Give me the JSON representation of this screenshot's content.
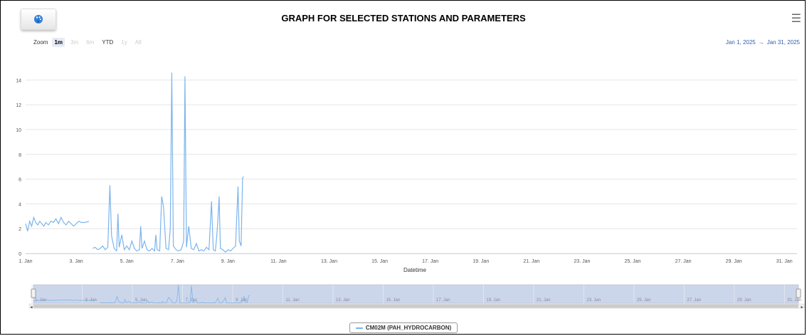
{
  "header": {
    "title": "GRAPH FOR SELECTED STATIONS AND PARAMETERS",
    "menu_icon": "hamburger-menu-icon",
    "palette_icon": "palette-icon"
  },
  "range_selector": {
    "label": "Zoom",
    "buttons": [
      {
        "label": "1m",
        "state": "active"
      },
      {
        "label": "3m",
        "state": "disabled"
      },
      {
        "label": "6m",
        "state": "disabled"
      },
      {
        "label": "YTD",
        "state": "normal"
      },
      {
        "label": "1y",
        "state": "disabled"
      },
      {
        "label": "All",
        "state": "disabled"
      }
    ],
    "from": "Jan 1, 2025",
    "to": "Jan 31, 2025"
  },
  "colors": {
    "series": "#7cb5ec",
    "navigator_fill": "#ccd6eb",
    "grid": "#e6e6e6"
  },
  "chart_data": {
    "type": "line",
    "xlabel": "Datetime",
    "ylabel": "",
    "ylim": [
      0,
      15
    ],
    "yticks": [
      0,
      2,
      4,
      6,
      8,
      10,
      12,
      14
    ],
    "xlim": [
      1,
      31.5
    ],
    "xticks": [
      {
        "value": 1,
        "label": "1. Jan"
      },
      {
        "value": 3,
        "label": "3. Jan"
      },
      {
        "value": 5,
        "label": "5. Jan"
      },
      {
        "value": 7,
        "label": "7. Jan"
      },
      {
        "value": 9,
        "label": "9. Jan"
      },
      {
        "value": 11,
        "label": "11. Jan"
      },
      {
        "value": 13,
        "label": "13. Jan"
      },
      {
        "value": 15,
        "label": "15. Jan"
      },
      {
        "value": 17,
        "label": "17. Jan"
      },
      {
        "value": 19,
        "label": "19. Jan"
      },
      {
        "value": 21,
        "label": "21. Jan"
      },
      {
        "value": 23,
        "label": "23. Jan"
      },
      {
        "value": 25,
        "label": "25. Jan"
      },
      {
        "value": 27,
        "label": "27. Jan"
      },
      {
        "value": 29,
        "label": "29. Jan"
      },
      {
        "value": 31,
        "label": "31. Jan"
      }
    ],
    "grid": true,
    "legend": "bottom-center",
    "series": [
      {
        "name": "CM02M (PAH_HYDROCARBON)",
        "segments": [
          [
            [
              1.0,
              2.4
            ],
            [
              1.08,
              1.8
            ],
            [
              1.16,
              2.6
            ],
            [
              1.24,
              2.2
            ],
            [
              1.32,
              2.9
            ],
            [
              1.4,
              2.5
            ],
            [
              1.48,
              2.3
            ],
            [
              1.56,
              2.6
            ],
            [
              1.64,
              2.4
            ],
            [
              1.72,
              2.2
            ],
            [
              1.8,
              2.5
            ],
            [
              1.9,
              2.3
            ],
            [
              2.0,
              2.6
            ],
            [
              2.1,
              2.5
            ],
            [
              2.2,
              2.8
            ],
            [
              2.3,
              2.4
            ],
            [
              2.4,
              2.9
            ],
            [
              2.5,
              2.5
            ],
            [
              2.6,
              2.3
            ],
            [
              2.7,
              2.6
            ],
            [
              2.8,
              2.4
            ],
            [
              2.9,
              2.2
            ],
            [
              3.0,
              2.4
            ],
            [
              3.1,
              2.6
            ],
            [
              3.2,
              2.5
            ],
            [
              3.35,
              2.5
            ],
            [
              3.5,
              2.6
            ]
          ],
          [
            [
              3.65,
              0.4
            ],
            [
              3.75,
              0.5
            ],
            [
              3.85,
              0.3
            ],
            [
              3.95,
              0.4
            ],
            [
              4.05,
              0.6
            ],
            [
              4.15,
              0.3
            ],
            [
              4.25,
              0.5
            ],
            [
              4.33,
              5.5
            ],
            [
              4.4,
              1.4
            ],
            [
              4.5,
              0.4
            ],
            [
              4.6,
              0.2
            ],
            [
              4.65,
              3.2
            ],
            [
              4.7,
              0.5
            ],
            [
              4.8,
              1.5
            ],
            [
              4.9,
              0.3
            ],
            [
              5.0,
              0.6
            ],
            [
              5.1,
              0.3
            ],
            [
              5.2,
              1.0
            ],
            [
              5.3,
              0.4
            ],
            [
              5.4,
              0.2
            ],
            [
              5.5,
              0.3
            ],
            [
              5.55,
              2.2
            ],
            [
              5.6,
              0.4
            ],
            [
              5.7,
              1.0
            ],
            [
              5.8,
              0.3
            ],
            [
              5.9,
              0.2
            ],
            [
              6.0,
              0.4
            ],
            [
              6.1,
              0.2
            ],
            [
              6.15,
              1.5
            ],
            [
              6.2,
              0.3
            ],
            [
              6.3,
              0.2
            ],
            [
              6.38,
              4.6
            ],
            [
              6.45,
              3.8
            ],
            [
              6.55,
              0.4
            ],
            [
              6.65,
              0.3
            ],
            [
              6.72,
              2.0
            ],
            [
              6.78,
              14.6
            ],
            [
              6.84,
              0.6
            ],
            [
              6.95,
              0.3
            ],
            [
              7.05,
              0.2
            ],
            [
              7.15,
              0.3
            ],
            [
              7.25,
              1.0
            ],
            [
              7.3,
              14.3
            ],
            [
              7.36,
              0.5
            ],
            [
              7.45,
              2.2
            ],
            [
              7.55,
              0.4
            ],
            [
              7.65,
              0.3
            ],
            [
              7.75,
              0.8
            ],
            [
              7.85,
              0.2
            ],
            [
              7.95,
              0.3
            ],
            [
              8.05,
              0.2
            ],
            [
              8.15,
              0.5
            ],
            [
              8.25,
              0.3
            ],
            [
              8.35,
              4.2
            ],
            [
              8.42,
              0.3
            ],
            [
              8.5,
              0.2
            ],
            [
              8.55,
              1.2
            ],
            [
              8.6,
              2.6
            ],
            [
              8.65,
              4.6
            ],
            [
              8.7,
              0.4
            ],
            [
              8.8,
              0.3
            ],
            [
              8.9,
              0.1
            ],
            [
              9.0,
              0.3
            ],
            [
              9.1,
              0.2
            ],
            [
              9.2,
              0.4
            ],
            [
              9.3,
              0.6
            ],
            [
              9.4,
              5.4
            ],
            [
              9.45,
              1.0
            ],
            [
              9.52,
              0.6
            ],
            [
              9.58,
              6.1
            ],
            [
              9.62,
              6.2
            ]
          ]
        ]
      }
    ],
    "navigator": {
      "xticks_same_as_main": true
    }
  }
}
